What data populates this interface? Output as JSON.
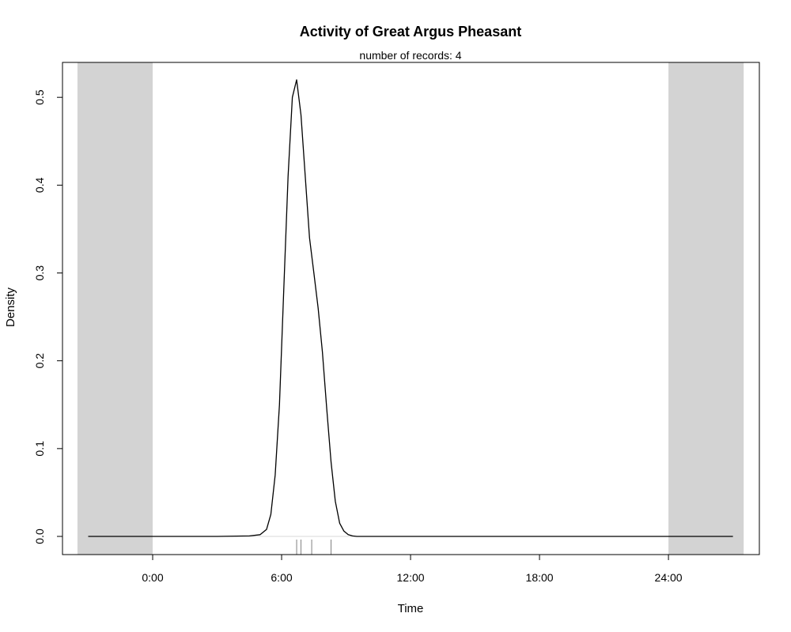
{
  "chart_data": {
    "type": "line",
    "title": "Activity of Great Argus Pheasant",
    "subtitle": "number of records: 4",
    "xlabel": "Time",
    "ylabel": "Density",
    "xlim": [
      -3.5,
      23.5
    ],
    "ylim": [
      -0.021,
      0.5
    ],
    "x_unit": "hours",
    "x_ticks": [
      0,
      6,
      12,
      18,
      24
    ],
    "x_tick_labels": [
      "0:00",
      "6:00",
      "12:00",
      "18:00",
      "24:00"
    ],
    "y_ticks": [
      0.0,
      0.1,
      0.2,
      0.3,
      0.4,
      0.5
    ],
    "y_tick_labels": [
      "0.0",
      "0.1",
      "0.2",
      "0.3",
      "0.4",
      "0.5"
    ],
    "shaded_regions": [
      {
        "from": -3.5,
        "to": 0,
        "color": "#d3d3d3"
      },
      {
        "from": 24,
        "to": 27.5,
        "color": "#d3d3d3"
      }
    ],
    "density_series": {
      "color": "#000000",
      "x": [
        -3,
        0,
        3,
        4.5,
        5.0,
        5.3,
        5.5,
        5.7,
        5.9,
        6.1,
        6.3,
        6.5,
        6.7,
        6.9,
        7.1,
        7.3,
        7.5,
        7.7,
        7.9,
        8.1,
        8.3,
        8.5,
        8.7,
        8.9,
        9.1,
        9.3,
        9.5,
        9.7,
        10.0,
        10.3,
        11,
        13,
        18,
        24,
        27
      ],
      "y": [
        0,
        0,
        0,
        0.0005,
        0.002,
        0.008,
        0.025,
        0.07,
        0.15,
        0.28,
        0.41,
        0.5,
        0.52,
        0.48,
        0.41,
        0.34,
        0.3,
        0.26,
        0.21,
        0.145,
        0.085,
        0.04,
        0.015,
        0.006,
        0.002,
        0.0005,
        0,
        0,
        0,
        0,
        0,
        0,
        0,
        0,
        0
      ]
    },
    "records": [
      6.7,
      6.9,
      7.4,
      8.3
    ],
    "rug_color": "#808080",
    "grid": false
  }
}
